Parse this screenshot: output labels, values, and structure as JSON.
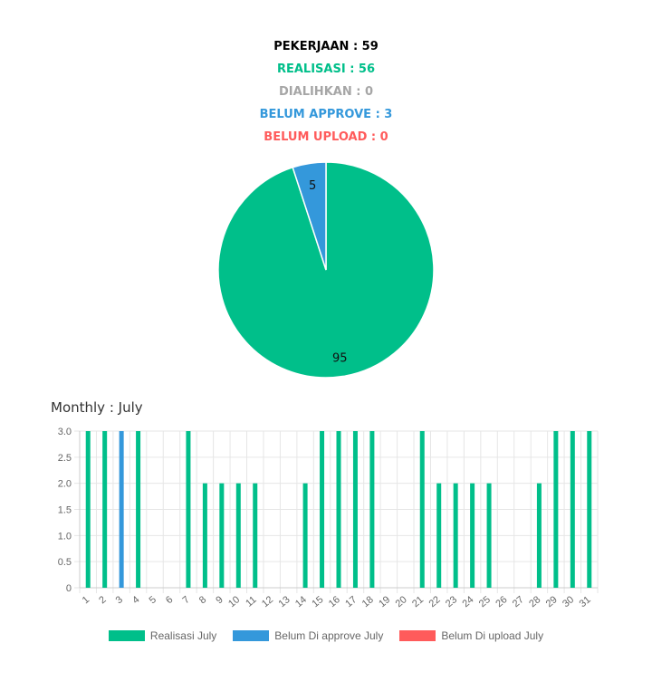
{
  "summary": {
    "pekerjaan": "PEKERJAAN : 59",
    "realisasi": "REALISASI : 56",
    "dialihkan": "DIALIHKAN : 0",
    "belum_approve": "BELUM APPROVE : 3",
    "belum_upload": "BELUM UPLOAD : 0"
  },
  "colors": {
    "pekerjaan": "#000000",
    "realisasi": "#00bf8a",
    "dialihkan": "#a6a6a6",
    "belum_approve": "#3498db",
    "belum_upload": "#ff5b5b"
  },
  "chart_data": [
    {
      "type": "pie",
      "labels": [
        "95",
        "5"
      ],
      "values": [
        95,
        5
      ],
      "colors": [
        "#00bf8a",
        "#3498db"
      ]
    },
    {
      "type": "bar",
      "title": "Monthly : July",
      "categories": [
        "1",
        "2",
        "3",
        "4",
        "5",
        "6",
        "7",
        "8",
        "9",
        "10",
        "11",
        "12",
        "13",
        "14",
        "15",
        "16",
        "17",
        "18",
        "19",
        "20",
        "21",
        "22",
        "23",
        "24",
        "25",
        "26",
        "27",
        "28",
        "29",
        "30",
        "31"
      ],
      "series": [
        {
          "name": "Realisasi July",
          "color": "#00bf8a",
          "values": [
            3,
            3,
            0,
            3,
            0,
            0,
            3,
            2,
            2,
            2,
            2,
            0,
            0,
            2,
            3,
            3,
            3,
            3,
            0,
            0,
            3,
            2,
            2,
            2,
            2,
            0,
            0,
            2,
            3,
            3,
            3
          ]
        },
        {
          "name": "Belum Di approve July",
          "color": "#3498db",
          "values": [
            0,
            0,
            3,
            0,
            0,
            0,
            0,
            0,
            0,
            0,
            0,
            0,
            0,
            0,
            0,
            0,
            0,
            0,
            0,
            0,
            0,
            0,
            0,
            0,
            0,
            0,
            0,
            0,
            0,
            0,
            0
          ]
        },
        {
          "name": "Belum Di upload July",
          "color": "#ff5b5b",
          "values": [
            0,
            0,
            0,
            0,
            0,
            0,
            0,
            0,
            0,
            0,
            0,
            0,
            0,
            0,
            0,
            0,
            0,
            0,
            0,
            0,
            0,
            0,
            0,
            0,
            0,
            0,
            0,
            0,
            0,
            0,
            0
          ]
        }
      ],
      "yticks": [
        "0",
        "0.5",
        "1.0",
        "1.5",
        "2.0",
        "2.5",
        "3.0"
      ],
      "ylim": [
        0,
        3
      ],
      "grid": true,
      "legend_position": "bottom"
    }
  ]
}
